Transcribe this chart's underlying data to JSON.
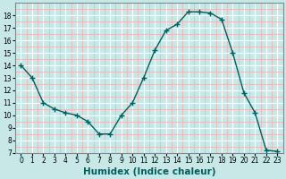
{
  "x": [
    0,
    1,
    2,
    3,
    4,
    5,
    6,
    7,
    8,
    9,
    10,
    11,
    12,
    13,
    14,
    15,
    16,
    17,
    18,
    19,
    20,
    21,
    22,
    23
  ],
  "y": [
    14,
    13,
    11,
    10.5,
    10.2,
    10,
    9.5,
    8.5,
    8.5,
    10,
    11,
    13,
    15.2,
    16.8,
    17.3,
    18.3,
    18.3,
    18.2,
    17.7,
    15,
    11.8,
    10.2,
    7.2,
    7.1
  ],
  "line_color": "#006060",
  "marker": "+",
  "marker_size": 4,
  "bg_color": "#c8e8e8",
  "major_grid_color": "#ffffff",
  "minor_grid_color": "#e8b0b0",
  "xlabel": "Humidex (Indice chaleur)",
  "xlim": [
    -0.5,
    23.5
  ],
  "ylim": [
    7,
    19
  ],
  "yticks": [
    7,
    8,
    9,
    10,
    11,
    12,
    13,
    14,
    15,
    16,
    17,
    18
  ],
  "xticks": [
    0,
    1,
    2,
    3,
    4,
    5,
    6,
    7,
    8,
    9,
    10,
    11,
    12,
    13,
    14,
    15,
    16,
    17,
    18,
    19,
    20,
    21,
    22,
    23
  ],
  "tick_fontsize": 5.5,
  "xlabel_fontsize": 7.5,
  "xlabel_fontweight": "bold",
  "xlabel_color": "#006060",
  "spine_color": "#888888"
}
